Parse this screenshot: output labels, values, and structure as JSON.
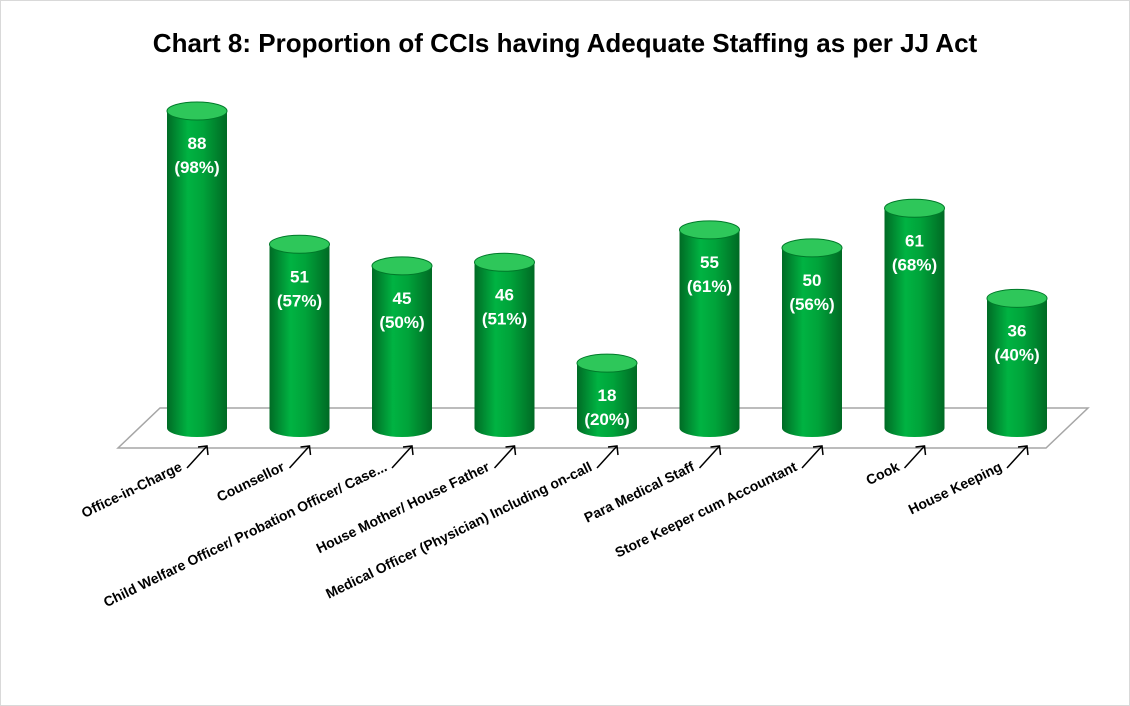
{
  "chart_data": {
    "type": "bar",
    "title": "Chart 8: Proportion of CCIs having Adequate Staffing as per JJ Act",
    "categories": [
      "Office-in-Charge",
      "Counsellor",
      "Child Welfare Officer/ Probation Officer/ Case...",
      "House Mother/ House Father",
      "Medical Officer (Physician) Including on-call",
      "Para Medical Staff",
      "Store Keeper cum Accountant",
      "Cook",
      "House Keeping"
    ],
    "series": [
      {
        "values": [
          88,
          51,
          45,
          46,
          18,
          55,
          50,
          61,
          36
        ],
        "labels": [
          "(98%)",
          "(57%)",
          "(50%)",
          "(51%)",
          "(20%)",
          "(61%)",
          "(56%)",
          "(68%)",
          "(40%)"
        ]
      }
    ],
    "ylim": [
      0,
      88
    ],
    "bar_style": "3d-cylinder",
    "colors": {
      "bar": "#00a33a",
      "bar_dark": "#007a2a",
      "bar_top": "#2ec75a",
      "floor": "#bfbfbf"
    }
  }
}
